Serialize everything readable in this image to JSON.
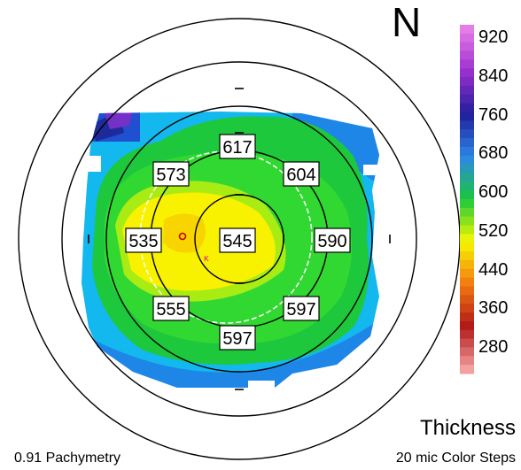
{
  "orientation_label": "N",
  "map_title": "Thickness",
  "color_step_note": "20 mic Color Steps",
  "measurement_label": "0.91 Pachymetry",
  "color_scale": [
    {
      "label": "920",
      "color": "#e67ce6"
    },
    {
      "label": "840",
      "color": "#9a2fd0"
    },
    {
      "label": "760",
      "color": "#1f1f9a"
    },
    {
      "label": "680",
      "color": "#2e86e8"
    },
    {
      "label": "600",
      "color": "#19c83c"
    },
    {
      "label": "520",
      "color": "#f8f800"
    },
    {
      "label": "440",
      "color": "#f27a10"
    },
    {
      "label": "360",
      "color": "#b01818"
    },
    {
      "label": "280",
      "color": "#f4a0a0"
    }
  ],
  "readings": {
    "center": "545",
    "superior": "617",
    "superior_temporal": "573",
    "superior_nasal": "604",
    "temporal": "535",
    "nasal": "590",
    "inferior_temporal": "555",
    "inferior_nasal": "597",
    "inferior": "597"
  }
}
